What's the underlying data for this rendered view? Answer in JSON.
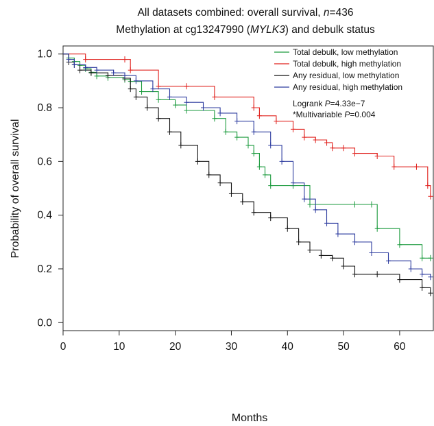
{
  "chart_data": {
    "type": "line",
    "title_line1": {
      "prefix": "All datasets combined: overall survival, ",
      "italic": "n",
      "suffix": "=436"
    },
    "title_line2": {
      "prefix": "Methylation at cg13247990 (",
      "italic": "MYLK3",
      "suffix": ") and debulk status"
    },
    "xlabel": "Months",
    "ylabel": "Probability of overall survival",
    "xlim": [
      0,
      66
    ],
    "ylim": [
      -0.03,
      1.03
    ],
    "x_ticks": [
      "0",
      "10",
      "20",
      "30",
      "40",
      "50",
      "60"
    ],
    "y_ticks": [
      "0.0",
      "0.2",
      "0.4",
      "0.6",
      "0.8",
      "1.0"
    ],
    "grid": false,
    "legend_position": "top-right",
    "stats": {
      "logrank": {
        "prefix": "Logrank ",
        "italic": "P",
        "suffix": "=4.33e−7"
      },
      "multivariable": {
        "prefix": "*Multivariable ",
        "italic": "P",
        "suffix": "=0.004"
      }
    },
    "series": [
      {
        "name": "Total debulk, low methylation",
        "color": "#1a9a3c",
        "x": [
          0,
          1,
          2,
          3,
          4,
          5,
          6,
          8,
          11,
          12,
          14,
          17,
          20,
          22,
          27,
          29,
          31,
          33,
          34,
          35,
          36,
          37,
          41,
          44,
          52,
          55,
          56,
          60,
          64,
          65.5
        ],
        "y": [
          1.0,
          0.985,
          0.972,
          0.958,
          0.945,
          0.932,
          0.918,
          0.912,
          0.905,
          0.898,
          0.86,
          0.83,
          0.81,
          0.79,
          0.76,
          0.71,
          0.69,
          0.66,
          0.63,
          0.58,
          0.55,
          0.51,
          0.51,
          0.44,
          0.44,
          0.44,
          0.35,
          0.29,
          0.24,
          0.24
        ]
      },
      {
        "name": "Total debulk, high methylation",
        "color": "#e0201c",
        "x": [
          0,
          4,
          11,
          12,
          17,
          22,
          27,
          34,
          35,
          38,
          41,
          43,
          45,
          47,
          48,
          50,
          52,
          56,
          59,
          63,
          65,
          65.5
        ],
        "y": [
          1.0,
          0.98,
          0.98,
          0.94,
          0.88,
          0.88,
          0.84,
          0.8,
          0.77,
          0.75,
          0.72,
          0.69,
          0.68,
          0.67,
          0.65,
          0.65,
          0.63,
          0.62,
          0.58,
          0.58,
          0.51,
          0.47
        ]
      },
      {
        "name": "Any residual, low methylation",
        "color": "#111111",
        "x": [
          0,
          1,
          2,
          3,
          5,
          8,
          11,
          12,
          13,
          15,
          17,
          19,
          21,
          24,
          26,
          28,
          30,
          32,
          34,
          37,
          40,
          42,
          44,
          46,
          48,
          50,
          52,
          56,
          60,
          64,
          65.5
        ],
        "y": [
          1.0,
          0.97,
          0.96,
          0.94,
          0.93,
          0.92,
          0.91,
          0.87,
          0.84,
          0.8,
          0.76,
          0.71,
          0.66,
          0.6,
          0.55,
          0.52,
          0.48,
          0.45,
          0.41,
          0.39,
          0.35,
          0.3,
          0.27,
          0.25,
          0.24,
          0.21,
          0.18,
          0.18,
          0.16,
          0.13,
          0.11
        ]
      },
      {
        "name": "Any residual, high methylation",
        "color": "#2b3a9e",
        "x": [
          0,
          1,
          2,
          4,
          6,
          9,
          11,
          13,
          16,
          19,
          22,
          25,
          28,
          31,
          34,
          37,
          39,
          41,
          43,
          45,
          47,
          49,
          52,
          55,
          58,
          62,
          64,
          65.5
        ],
        "y": [
          1.0,
          0.98,
          0.96,
          0.95,
          0.94,
          0.93,
          0.92,
          0.9,
          0.87,
          0.84,
          0.82,
          0.8,
          0.78,
          0.75,
          0.71,
          0.66,
          0.6,
          0.52,
          0.46,
          0.42,
          0.37,
          0.33,
          0.3,
          0.26,
          0.23,
          0.2,
          0.18,
          0.17
        ]
      }
    ]
  }
}
